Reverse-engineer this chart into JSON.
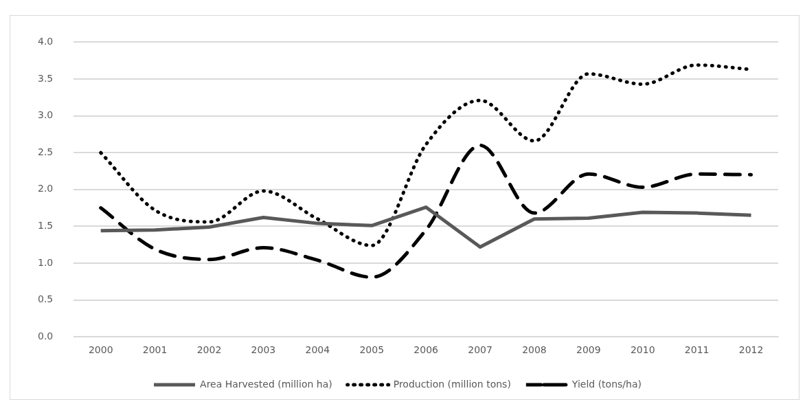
{
  "chart_data": {
    "type": "line",
    "categories": [
      "2000",
      "2001",
      "2002",
      "2003",
      "2004",
      "2005",
      "2006",
      "2007",
      "2008",
      "2009",
      "2010",
      "2011",
      "2012"
    ],
    "series": [
      {
        "name": "Area Harvested (million ha)",
        "color": "#595959",
        "line_style": "solid",
        "values": [
          1.44,
          1.45,
          1.49,
          1.62,
          1.54,
          1.51,
          1.76,
          1.22,
          1.6,
          1.61,
          1.69,
          1.68,
          1.65
        ]
      },
      {
        "name": "Production (million tons)",
        "color": "#000000",
        "line_style": "dotted",
        "values": [
          2.5,
          1.72,
          1.56,
          1.98,
          1.6,
          1.24,
          2.61,
          3.21,
          2.66,
          3.57,
          3.43,
          3.69,
          3.63
        ]
      },
      {
        "name": "Yield (tons/ha)",
        "color": "#000000",
        "line_style": "dashed",
        "values": [
          1.75,
          1.19,
          1.05,
          1.21,
          1.04,
          0.81,
          1.45,
          2.6,
          1.68,
          2.21,
          2.03,
          2.21,
          2.2
        ]
      }
    ],
    "ylim": [
      0,
      4
    ],
    "yticks": [
      {
        "value": 0,
        "label": "0.0"
      },
      {
        "value": 0.5,
        "label": "0.5"
      },
      {
        "value": 1,
        "label": "1.0"
      },
      {
        "value": 1.5,
        "label": "1.5"
      },
      {
        "value": 2,
        "label": "2.0"
      },
      {
        "value": 2.5,
        "label": "2.5"
      },
      {
        "value": 3,
        "label": "3.0"
      },
      {
        "value": 3.5,
        "label": "3.5"
      },
      {
        "value": 4,
        "label": "4.0"
      }
    ],
    "grid": "y",
    "legend": "bottom",
    "marker": "none"
  }
}
